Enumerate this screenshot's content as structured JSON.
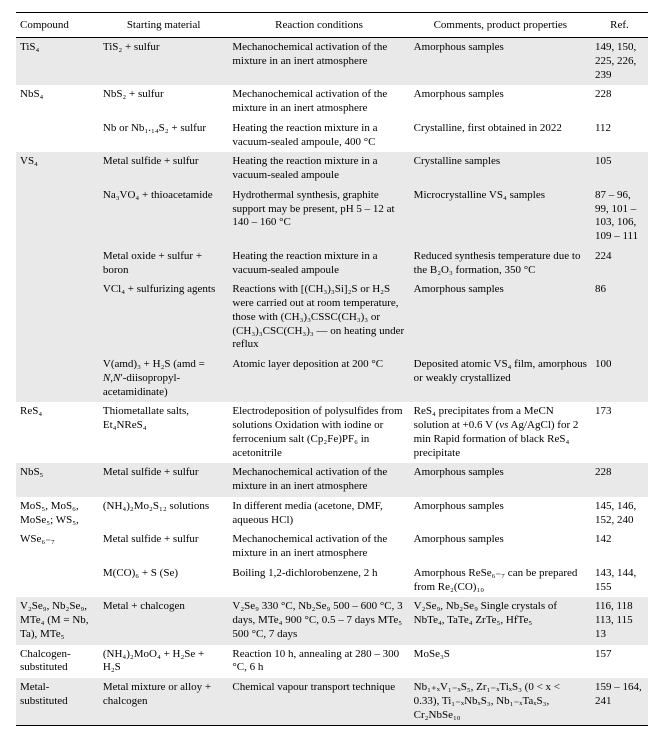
{
  "columns": [
    "Compound",
    "Starting material",
    "Reaction conditions",
    "Comments, product properties",
    "Ref."
  ],
  "rows": [
    {
      "shade": true,
      "cells": [
        "TiS₄",
        "TiS₂ + sulfur",
        "Mechanochemical activation of the mixture in an inert atmosphere",
        "Amorphous samples",
        "149, 150, 225, 226, 239"
      ]
    },
    {
      "shade": false,
      "cells": [
        "NbS₄",
        "NbS₂ + sulfur",
        "Mechanochemical activation of the mixture in an inert atmosphere",
        "Amorphous samples",
        "228"
      ]
    },
    {
      "shade": false,
      "cells": [
        "",
        "Nb or Nb₁.₁₄S₂ + sulfur",
        "Heating the reaction mixture in a vacuum-sealed ampoule, 400 °C",
        "Crystalline, first obtained in 2022",
        "112"
      ]
    },
    {
      "shade": true,
      "cells": [
        "VS₄",
        "Metal sulfide + sulfur",
        "Heating the reaction mixture in a vacuum-sealed ampoule",
        "Crystalline samples",
        "105"
      ]
    },
    {
      "shade": true,
      "cells": [
        "",
        "Na₃VO₄ + thioacetamide",
        "Hydrothermal synthesis, graphite support may be present, pH 5 – 12 at 140 – 160 °C",
        "Microcrystalline VS₄ samples",
        "87 – 96, 99, 101 – 103, 106, 109 – 111"
      ]
    },
    {
      "shade": true,
      "cells": [
        "",
        "Metal oxide + sulfur + boron",
        "Heating the reaction mixture in a vacuum-sealed ampoule",
        "Reduced synthesis temperature due to the B₂O₃ formation, 350 °C",
        "224"
      ]
    },
    {
      "shade": true,
      "cells": [
        "",
        "VCl₄ + sulfurizing agents",
        "Reactions with [(CH₃)₃Si]₂S or H₂S were carried out at room temperature, those with (CH₃)₃CSSC(CH₃)₃ or (CH₃)₃CSC(CH₃)₃ — on heating under reflux",
        "Amorphous samples",
        "86"
      ]
    },
    {
      "shade": true,
      "cells": [
        "",
        "V(amd)₃ + H₂S (amd = N,N′-diisopropyl-acetamidinate)",
        "Atomic layer deposition at 200 °C",
        "Deposited atomic VS₄ film, amorphous or weakly crystallized",
        "100"
      ]
    },
    {
      "shade": false,
      "cells": [
        "ReS₄",
        "Thiometallate salts, Et₄NReS₄",
        "Electrodeposition of polysulfides from solutions Oxidation with iodine or ferrocenium salt (Cp₂Fe)PF₆ in acetonitrile",
        "ReS₄ precipitates from a MeCN solution at +0.6 V (vs Ag/AgCl) for 2 min Rapid formation of black ReS₄ precipitate",
        "173"
      ]
    },
    {
      "shade": true,
      "cells": [
        "NbS₅",
        "Metal sulfide + sulfur",
        "Mechanochemical activation of the mixture in an inert atmosphere",
        "Amorphous samples",
        "228"
      ]
    },
    {
      "shade": false,
      "cells": [
        "MoS₅, MoS₆, MoSe₅; WS₅,",
        "(NH₄)₂Mo₂S₁₂ solutions",
        "In different media (acetone, DMF, aqueous HCl)",
        "Amorphous samples",
        "145, 146, 152, 240"
      ]
    },
    {
      "shade": false,
      "cells": [
        "WSe₆₋₇",
        "Metal sulfide + sulfur",
        "Mechanochemical activation of the mixture in an inert atmosphere",
        "Amorphous samples",
        "142"
      ]
    },
    {
      "shade": false,
      "cells": [
        "",
        "M(CO)₆ + S (Se)",
        "Boiling 1,2-dichlorobenzene, 2 h",
        "Amorphous ReSe₆₋₇ can be prepared from Re₂(CO)₁₀",
        "143, 144, 155"
      ]
    },
    {
      "shade": true,
      "cells": [
        "V₂Se₉, Nb₂Se₉, MTe₄ (M = Nb, Ta), MTe₅",
        "Metal + chalcogen",
        "V₂Se₉ 330 °C, Nb₂Se₉ 500 – 600 °C, 3 days, MTe₄ 900 °C, 0.5 – 7 days MTe₅ 500 °C, 7 days",
        "V₂Se₉, Nb₂Se₉ Single crystals of NbTe₄, TaTe₄ ZrTe₅, HfTe₅",
        "116, 118 113, 115 13"
      ]
    },
    {
      "shade": false,
      "cells": [
        "Chalcogen-substituted",
        "(NH₄)₂MoO₄ + H₂Se + H₂S",
        "Reaction 10 h, annealing at 280 – 300 °C, 6 h",
        "MoSe₃S",
        "157"
      ]
    },
    {
      "shade": true,
      "last": true,
      "cells": [
        "Metal-substituted",
        "Metal mixture or alloy + chalcogen",
        "Chemical vapour transport technique",
        "Nb₁₊ₓV₁₋ₓS₅, Zr₁₋ₓTiₓS₃ (0 < x < 0.33), Ti₁₋ₓNbₓS₃, Nb₁₋ₓTaₓS₃, Cr₂NbSe₁₀",
        "159 – 164, 241"
      ]
    }
  ]
}
